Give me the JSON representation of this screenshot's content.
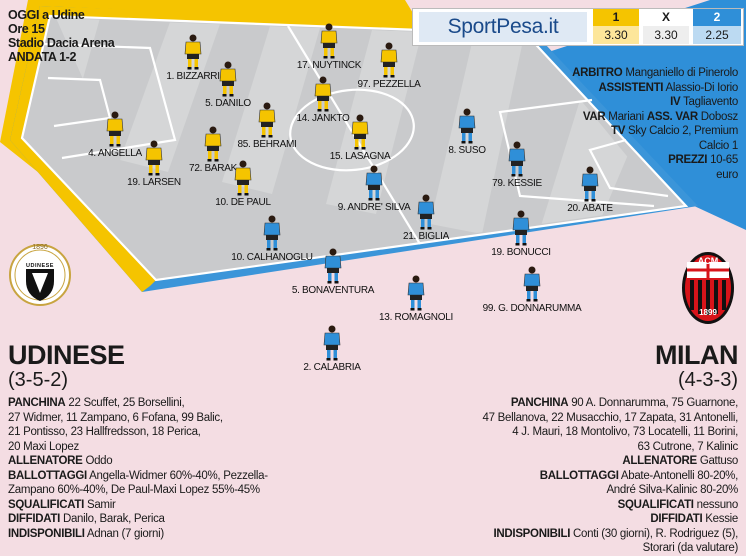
{
  "match_info": {
    "line1": "OGGI a Udine",
    "line2": "Ore 15",
    "line3": "Stadio Dacia Arena",
    "line4": "ANDATA 1-2"
  },
  "odds": {
    "brand": "SportPesa.it",
    "col1_label": "1",
    "col1_value": "3.30",
    "colx_label": "X",
    "colx_value": "3.30",
    "col2_label": "2",
    "col2_value": "2.25",
    "colors": {
      "col1": "#f5c400",
      "col2": "#2f8fd8"
    }
  },
  "officials": {
    "arbitro_label": "ARBITRO",
    "arbitro_value": "Manganiello di Pinerolo",
    "assistenti_label": "ASSISTENTI",
    "assistenti_value": "Alassio-Di Iorio",
    "iv_label": "IV",
    "iv_value": "Tagliavento",
    "var_label": "VAR",
    "var_value": "Mariani",
    "assvar_label": "ASS. VAR",
    "assvar_value": "Dobosz",
    "tv_label": "TV",
    "tv_value_1": "Sky Calcio 2, Premium",
    "tv_value_2": "Calcio 1",
    "prezzi_label": "PREZZI",
    "prezzi_value_1": "10-65",
    "prezzi_value_2": "euro"
  },
  "udinese": {
    "name": "UDINESE",
    "formation": "(3-5-2)",
    "crest_year": "1896",
    "crest_text": "UDINESE CALCIO",
    "color": "#f5c400",
    "players": [
      {
        "label": "1. BIZZARRI"
      },
      {
        "label": "5. DANILO"
      },
      {
        "label": "4. ANGELLA"
      },
      {
        "label": "19. LARSEN"
      },
      {
        "label": "72. BARAK"
      },
      {
        "label": "10. DE PAUL"
      },
      {
        "label": "85. BEHRAMI"
      },
      {
        "label": "14. JANKTO"
      },
      {
        "label": "17. NUYTINCK"
      },
      {
        "label": "97. PEZZELLA"
      },
      {
        "label": "15. LASAGNA"
      }
    ],
    "panchina_label": "PANCHINA",
    "panchina": [
      "22 Scuffet, 25 Borsellini,",
      "27 Widmer, 11 Zampano, 6 Fofana, 99 Balic,",
      "21 Pontisso, 23 Hallfredsson, 18 Perica,",
      "20 Maxi Lopez"
    ],
    "allenatore_label": "ALLENATORE",
    "allenatore": "Oddo",
    "ballottaggi_label": "BALLOTTAGGI",
    "ballottaggi": [
      "Angella-Widmer 60%-40%, Pezzella-",
      "Zampano 60%-40%, De Paul-Maxi Lopez 55%-45%"
    ],
    "squalificati_label": "SQUALIFICATI",
    "squalificati": "Samir",
    "diffidati_label": "DIFFIDATI",
    "diffidati": "Danilo, Barak, Perica",
    "indisponibili_label": "INDISPONIBILI",
    "indisponibili": "Adnan (7 giorni)"
  },
  "milan": {
    "name": "MILAN",
    "formation": "(4-3-3)",
    "crest_text": "ACM",
    "crest_year": "1899",
    "color": "#2f8fd8",
    "players": [
      {
        "label": "8. SUSO"
      },
      {
        "label": "79. KESSIE"
      },
      {
        "label": "20. ABATE"
      },
      {
        "label": "9. ANDRE' SILVA"
      },
      {
        "label": "21. BIGLIA"
      },
      {
        "label": "19. BONUCCI"
      },
      {
        "label": "10. CALHANOGLU"
      },
      {
        "label": "5. BONAVENTURA"
      },
      {
        "label": "13. ROMAGNOLI"
      },
      {
        "label": "99. G. DONNARUMMA"
      },
      {
        "label": "2. CALABRIA"
      }
    ],
    "panchina_label": "PANCHINA",
    "panchina": [
      "90 A. Donnarumma, 75 Guarnone,",
      "47 Bellanova, 22 Musacchio, 17 Zapata, 31 Antonelli,",
      "4 J. Mauri, 18 Montolivo, 73 Locatelli, 11 Borini,",
      "63 Cutrone, 7 Kalinic"
    ],
    "allenatore_label": "ALLENATORE",
    "allenatore": "Gattuso",
    "ballottaggi_label": "BALLOTTAGGI",
    "ballottaggi": [
      "Abate-Antonelli 80-20%,",
      "André Silva-Kalinic 80-20%"
    ],
    "squalificati_label": "SQUALIFICATI",
    "squalificati": "nessuno",
    "diffidati_label": "DIFFIDATI",
    "diffidati": "Kessie",
    "indisponibili_label": "INDISPONIBILI",
    "indisponibili": [
      "Conti (30 giorni), R. Rodriguez (5),",
      "Storari (da valutare)"
    ]
  }
}
